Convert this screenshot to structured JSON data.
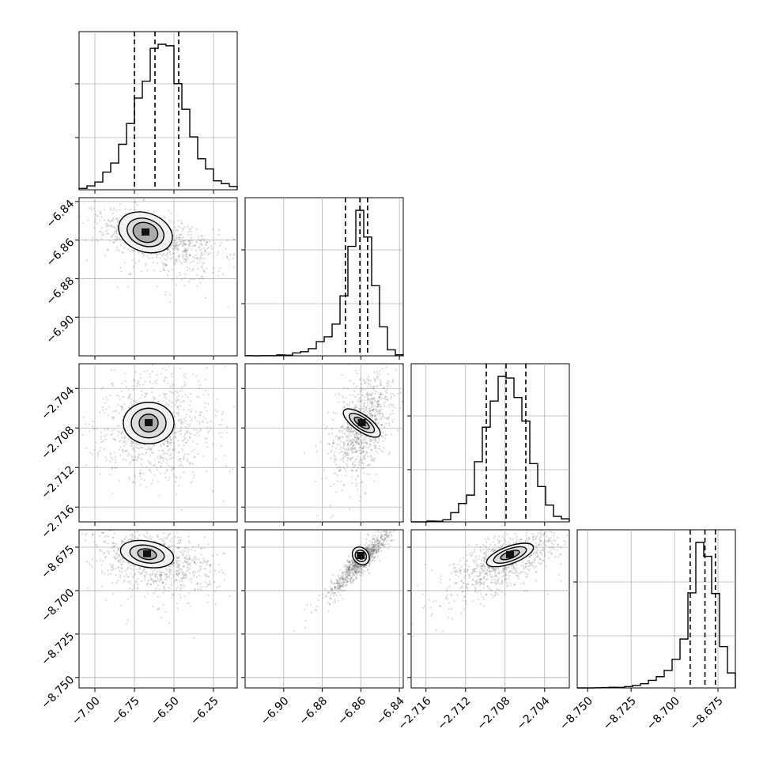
{
  "chart_data": {
    "type": "corner",
    "grid": true,
    "parameters": [
      {
        "range": [
          -7.1,
          -6.1
        ],
        "ticks": [
          -7.0,
          -6.75,
          -6.5,
          -6.25
        ],
        "tick_labels": [
          "−7.00",
          "−6.75",
          "−6.50",
          "−6.25"
        ],
        "mean": -6.62,
        "sd": 0.15,
        "skew": 0.2,
        "quantiles": [
          -6.75,
          -6.62,
          -6.47
        ]
      },
      {
        "range": [
          -6.92,
          -6.838
        ],
        "ticks": [
          -6.9,
          -6.88,
          -6.86,
          -6.84
        ],
        "tick_labels": [
          "−6.90",
          "−6.88",
          "−6.86",
          "−6.84"
        ],
        "mean": -6.859,
        "sd": 0.006,
        "skew": -4,
        "quantiles": [
          -6.868,
          -6.8605,
          -6.8565
        ]
      },
      {
        "range": [
          -2.7175,
          -2.7015
        ],
        "ticks": [
          -2.716,
          -2.712,
          -2.708,
          -2.704
        ],
        "tick_labels": [
          "−2.716",
          "−2.712",
          "−2.708",
          "−2.704"
        ],
        "mean": -2.7079,
        "sd": 0.0021,
        "skew": 0,
        "quantiles": [
          -2.7099,
          -2.7079,
          -2.7059
        ]
      },
      {
        "range": [
          -8.756,
          -8.665
        ],
        "ticks": [
          -8.75,
          -8.725,
          -8.7,
          -8.675
        ],
        "tick_labels": [
          "−8.750",
          "−8.725",
          "−8.700",
          "−8.675"
        ],
        "mean": -8.682,
        "sd": 0.007,
        "skew": -4,
        "quantiles": [
          -8.691,
          -8.6825,
          -8.6765
        ]
      }
    ],
    "pairs": [
      {
        "row": 1,
        "col": 0,
        "peak": [
          -6.68,
          -6.856
        ],
        "contour_sizes": [
          [
            0.16,
            0.01
          ],
          [
            0.24,
            0.014
          ],
          [
            0.35,
            0.02
          ]
        ],
        "angle": -20,
        "corr": -0.55
      },
      {
        "row": 2,
        "col": 0,
        "peak": [
          -6.66,
          -2.7075
        ],
        "contour_sizes": [
          [
            0.12,
            0.0018
          ],
          [
            0.22,
            0.003
          ],
          [
            0.32,
            0.0042
          ]
        ],
        "angle": 0,
        "corr": 0.05
      },
      {
        "row": 2,
        "col": 1,
        "peak": [
          -6.8595,
          -2.7075
        ],
        "contour_sizes": [
          [
            0.0035,
            0.0018
          ],
          [
            0.006,
            0.003
          ],
          [
            0.0085,
            0.0044
          ]
        ],
        "angle": 55,
        "corr": 0.5
      },
      {
        "row": 3,
        "col": 0,
        "peak": [
          -6.67,
          -8.679
        ],
        "contour_sizes": [
          [
            0.12,
            0.006
          ],
          [
            0.22,
            0.01
          ],
          [
            0.34,
            0.015
          ]
        ],
        "angle": -10,
        "corr": -0.4
      },
      {
        "row": 3,
        "col": 1,
        "peak": [
          -6.86,
          -8.68
        ],
        "contour_sizes": [
          [
            0.003,
            0.004
          ],
          [
            0.0055,
            0.007
          ],
          [
            0.008,
            0.011
          ]
        ],
        "angle": 40,
        "corr": 0.92
      },
      {
        "row": 3,
        "col": 2,
        "peak": [
          -2.7075,
          -8.6795
        ],
        "contour_sizes": [
          [
            0.002,
            0.004
          ],
          [
            0.0035,
            0.007
          ],
          [
            0.005,
            0.01
          ]
        ],
        "angle": 20,
        "corr": 0.6
      }
    ]
  }
}
